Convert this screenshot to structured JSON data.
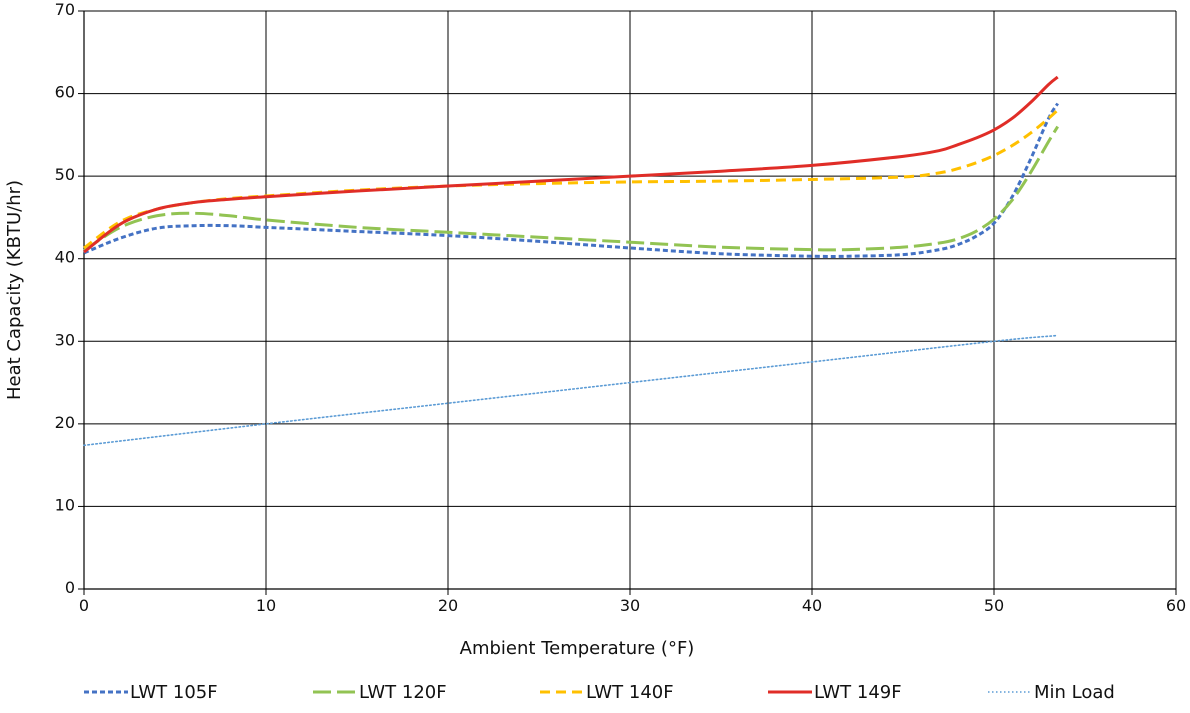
{
  "chart_data": {
    "type": "line",
    "title": "",
    "xlabel": "Ambient Temperature (°F)",
    "ylabel": "Heat Capacity (KBTU/hr)",
    "xlim": [
      0,
      60
    ],
    "ylim": [
      0,
      70
    ],
    "xticks": [
      0,
      10,
      20,
      30,
      40,
      50,
      60
    ],
    "yticks": [
      0,
      10,
      20,
      30,
      40,
      50,
      60,
      70
    ],
    "grid": true,
    "legend_position": "bottom",
    "series": [
      {
        "name": "LWT 105F",
        "color": "#4472c4",
        "dash": "short-dash",
        "x": [
          0,
          2,
          4,
          6,
          8,
          10,
          15,
          20,
          25,
          30,
          35,
          40,
          42,
          45,
          47,
          48,
          49,
          50,
          51,
          52,
          53,
          53.5
        ],
        "y": [
          40.7,
          42.5,
          43.7,
          44.0,
          44.0,
          43.8,
          43.3,
          42.8,
          42.1,
          41.3,
          40.6,
          40.3,
          40.3,
          40.5,
          41.1,
          41.7,
          42.7,
          44.3,
          47.5,
          52.0,
          57.0,
          58.8
        ]
      },
      {
        "name": "LWT 120F",
        "color": "#92c353",
        "dash": "long-dash",
        "x": [
          0,
          2,
          4,
          6,
          8,
          10,
          15,
          20,
          25,
          30,
          35,
          40,
          42,
          45,
          47,
          48,
          49,
          50,
          51,
          52,
          53,
          53.5
        ],
        "y": [
          41.0,
          43.8,
          45.2,
          45.5,
          45.2,
          44.7,
          43.8,
          43.2,
          42.6,
          42.0,
          41.4,
          41.1,
          41.1,
          41.4,
          41.9,
          42.4,
          43.3,
          44.8,
          47.1,
          50.4,
          54.2,
          56.0
        ]
      },
      {
        "name": "LWT 140F",
        "color": "#ffc000",
        "dash": "dash",
        "x": [
          0,
          2,
          4,
          6,
          8,
          10,
          15,
          20,
          25,
          30,
          35,
          40,
          45,
          47,
          48,
          49,
          50,
          51,
          52,
          53,
          53.5
        ],
        "y": [
          41.3,
          44.5,
          46.0,
          46.8,
          47.3,
          47.6,
          48.3,
          48.8,
          49.1,
          49.3,
          49.4,
          49.6,
          49.9,
          50.4,
          50.9,
          51.6,
          52.5,
          53.7,
          55.2,
          57.0,
          58.0
        ]
      },
      {
        "name": "LWT 149F",
        "color": "#e02d27",
        "dash": "solid",
        "x": [
          0,
          2,
          4,
          6,
          8,
          10,
          15,
          20,
          25,
          30,
          35,
          40,
          45,
          47,
          48,
          49,
          50,
          51,
          52,
          53,
          53.5
        ],
        "y": [
          40.8,
          44.2,
          46.0,
          46.8,
          47.2,
          47.5,
          48.2,
          48.8,
          49.4,
          50.0,
          50.6,
          51.3,
          52.4,
          53.1,
          53.8,
          54.6,
          55.6,
          57.0,
          58.9,
          61.1,
          62.0
        ]
      },
      {
        "name": "Min Load",
        "color": "#5b9bd5",
        "dash": "dotted",
        "x": [
          0,
          10,
          20,
          30,
          40,
          50,
          53.5
        ],
        "y": [
          17.4,
          20.0,
          22.5,
          25.0,
          27.5,
          30.0,
          30.7
        ]
      }
    ]
  }
}
